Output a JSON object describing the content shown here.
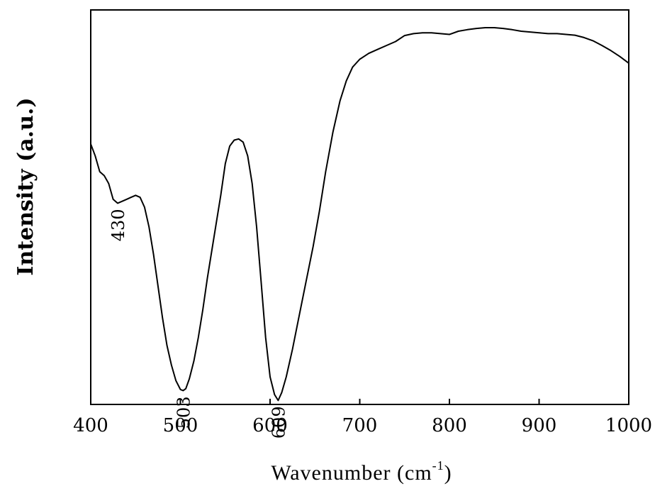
{
  "chart_data": {
    "type": "line",
    "xlabel": "Wavenumber (cm",
    "xlabel_sup": "-1",
    "xlabel_close": ")",
    "ylabel": "Intensity (a.u.)",
    "xlim": [
      400,
      1000
    ],
    "ylim": [
      0,
      100
    ],
    "xticks": [
      400,
      500,
      600,
      700,
      800,
      900,
      1000
    ],
    "xtick_labels": [
      "400",
      "500",
      "600",
      "700",
      "800",
      "900",
      "1000"
    ],
    "y_ticks_shown": false,
    "grid": false,
    "line_color": "#000000",
    "series": [
      {
        "x": [
          400,
          405,
          410,
          415,
          420,
          425,
          430,
          435,
          440,
          445,
          450,
          455,
          460,
          465,
          470,
          475,
          480,
          485,
          490,
          495,
          500,
          503,
          506,
          510,
          515,
          520,
          525,
          530,
          535,
          540,
          545,
          550,
          555,
          560,
          565,
          570,
          575,
          580,
          585,
          590,
          595,
          600,
          605,
          609,
          613,
          618,
          625,
          632,
          640,
          648,
          655,
          662,
          670,
          678,
          685,
          692,
          700,
          710,
          720,
          730,
          740,
          750,
          760,
          770,
          780,
          790,
          800,
          810,
          820,
          830,
          840,
          850,
          860,
          870,
          880,
          890,
          900,
          910,
          920,
          930,
          940,
          950,
          960,
          970,
          980,
          990,
          1000
        ],
        "y": [
          66,
          63,
          59,
          58,
          56,
          52,
          51,
          51.5,
          52,
          52.5,
          53,
          52.5,
          50,
          45,
          38,
          30,
          22,
          15,
          10,
          6,
          3.8,
          3.5,
          4,
          6.5,
          11,
          17,
          24,
          32,
          39,
          46,
          53,
          61,
          65.5,
          67,
          67.3,
          66.5,
          63,
          56,
          45,
          31,
          17,
          7,
          2.5,
          1,
          3,
          7,
          14,
          22,
          31,
          40,
          49,
          59,
          69,
          77,
          82,
          85.5,
          87.5,
          89,
          90,
          91,
          92,
          93.5,
          94,
          94.2,
          94.2,
          94,
          93.8,
          94.6,
          95,
          95.3,
          95.5,
          95.5,
          95.3,
          95,
          94.6,
          94.4,
          94.2,
          94,
          94,
          93.8,
          93.6,
          93,
          92.2,
          91,
          89.7,
          88.2,
          86.5
        ]
      }
    ],
    "annotations": [
      {
        "text": "430",
        "x": 430,
        "y": 51
      },
      {
        "text": "503",
        "x": 503,
        "y": 3.5
      },
      {
        "text": "609",
        "x": 609,
        "y": 1
      }
    ]
  }
}
